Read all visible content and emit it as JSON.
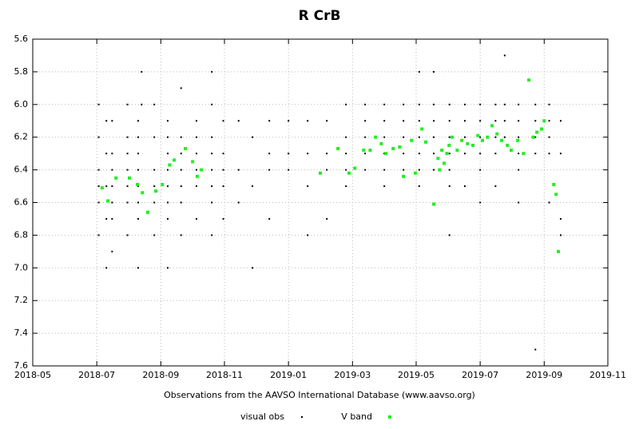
{
  "chart_data": {
    "type": "scatter",
    "title": "R CrB",
    "x_label": "Observations from the AAVSO International Database (www.aavso.org)",
    "xlim": [
      2018.333,
      2019.833
    ],
    "xticks": [
      {
        "value": 2018.333,
        "label": "2018-05"
      },
      {
        "value": 2018.5,
        "label": "2018-07"
      },
      {
        "value": 2018.667,
        "label": "2018-09"
      },
      {
        "value": 2018.833,
        "label": "2018-11"
      },
      {
        "value": 2019.0,
        "label": "2019-01"
      },
      {
        "value": 2019.167,
        "label": "2019-03"
      },
      {
        "value": 2019.333,
        "label": "2019-05"
      },
      {
        "value": 2019.5,
        "label": "2019-07"
      },
      {
        "value": 2019.667,
        "label": "2019-09"
      },
      {
        "value": 2019.833,
        "label": "2019-11"
      }
    ],
    "ylim": [
      5.6,
      7.6
    ],
    "y_inverted": true,
    "yticks": [
      5.6,
      5.8,
      {
        "value": 6,
        "label": "6.0"
      },
      6.2,
      6.4,
      6.6,
      6.8,
      {
        "value": 7,
        "label": "7.0"
      },
      7.2,
      7.4,
      7.6
    ],
    "grid": true,
    "legend": "bottom",
    "series": [
      {
        "name": "visual obs",
        "color": "#000000",
        "marker": "dot",
        "x": [
          2018.505,
          2018.505,
          2018.505,
          2018.505,
          2018.505,
          2018.505,
          2018.525,
          2018.525,
          2018.525,
          2018.525,
          2018.525,
          2018.54,
          2018.54,
          2018.54,
          2018.54,
          2018.54,
          2018.54,
          2018.54,
          2018.58,
          2018.58,
          2018.58,
          2018.58,
          2018.58,
          2018.58,
          2018.58,
          2018.608,
          2018.608,
          2018.608,
          2018.608,
          2018.608,
          2018.608,
          2018.608,
          2018.608,
          2018.617,
          2018.617,
          2018.65,
          2018.65,
          2018.65,
          2018.65,
          2018.65,
          2018.65,
          2018.685,
          2018.685,
          2018.685,
          2018.685,
          2018.685,
          2018.685,
          2018.685,
          2018.685,
          2018.72,
          2018.72,
          2018.72,
          2018.72,
          2018.72,
          2018.72,
          2018.72,
          2018.76,
          2018.76,
          2018.76,
          2018.76,
          2018.76,
          2018.76,
          2018.8,
          2018.8,
          2018.8,
          2018.8,
          2018.8,
          2018.8,
          2018.8,
          2018.8,
          2018.83,
          2018.83,
          2018.83,
          2018.83,
          2018.83,
          2018.87,
          2018.87,
          2018.87,
          2018.906,
          2018.906,
          2018.906,
          2018.95,
          2018.95,
          2018.95,
          2018.95,
          2019.0,
          2019.0,
          2019.0,
          2019.05,
          2019.05,
          2019.05,
          2019.05,
          2019.1,
          2019.1,
          2019.1,
          2019.1,
          2019.15,
          2019.15,
          2019.15,
          2019.15,
          2019.15,
          2019.2,
          2019.2,
          2019.2,
          2019.2,
          2019.2,
          2019.25,
          2019.25,
          2019.25,
          2019.25,
          2019.25,
          2019.25,
          2019.3,
          2019.3,
          2019.3,
          2019.3,
          2019.3,
          2019.341,
          2019.341,
          2019.341,
          2019.341,
          2019.341,
          2019.341,
          2019.341,
          2019.379,
          2019.379,
          2019.379,
          2019.379,
          2019.379,
          2019.379,
          2019.42,
          2019.42,
          2019.42,
          2019.42,
          2019.42,
          2019.42,
          2019.42,
          2019.46,
          2019.46,
          2019.46,
          2019.46,
          2019.46,
          2019.5,
          2019.5,
          2019.5,
          2019.5,
          2019.5,
          2019.5,
          2019.54,
          2019.54,
          2019.54,
          2019.54,
          2019.54,
          2019.564,
          2019.564,
          2019.564,
          2019.564,
          2019.6,
          2019.6,
          2019.6,
          2019.6,
          2019.6,
          2019.6,
          2019.644,
          2019.644,
          2019.644,
          2019.644,
          2019.644,
          2019.68,
          2019.68,
          2019.68,
          2019.68,
          2019.68,
          2019.71,
          2019.71,
          2019.71,
          2019.71
        ],
        "values": [
          6.0,
          6.2,
          6.4,
          6.5,
          6.6,
          6.8,
          6.1,
          6.3,
          6.5,
          6.7,
          7.0,
          6.1,
          6.3,
          6.4,
          6.5,
          6.6,
          6.7,
          6.9,
          6.0,
          6.2,
          6.3,
          6.4,
          6.5,
          6.6,
          6.8,
          6.1,
          6.2,
          6.3,
          6.4,
          6.5,
          6.6,
          6.7,
          7.0,
          5.8,
          6.0,
          6.0,
          6.2,
          6.4,
          6.5,
          6.6,
          6.8,
          6.1,
          6.2,
          6.3,
          6.4,
          6.5,
          6.6,
          6.7,
          7.0,
          5.9,
          6.2,
          6.3,
          6.4,
          6.5,
          6.6,
          6.8,
          6.1,
          6.2,
          6.3,
          6.4,
          6.5,
          6.7,
          5.8,
          6.0,
          6.2,
          6.3,
          6.4,
          6.5,
          6.6,
          6.8,
          6.1,
          6.3,
          6.4,
          6.5,
          6.7,
          6.1,
          6.4,
          6.6,
          6.2,
          6.5,
          7.0,
          6.1,
          6.3,
          6.4,
          6.7,
          6.1,
          6.3,
          6.4,
          6.1,
          6.3,
          6.5,
          6.8,
          6.1,
          6.3,
          6.4,
          6.7,
          6.0,
          6.2,
          6.3,
          6.4,
          6.5,
          6.0,
          6.1,
          6.2,
          6.3,
          6.4,
          6.0,
          6.1,
          6.2,
          6.3,
          6.4,
          6.5,
          6.0,
          6.1,
          6.2,
          6.3,
          6.4,
          5.8,
          6.0,
          6.1,
          6.2,
          6.3,
          6.4,
          6.5,
          5.8,
          6.0,
          6.1,
          6.2,
          6.3,
          6.4,
          6.0,
          6.1,
          6.2,
          6.3,
          6.4,
          6.5,
          6.8,
          6.0,
          6.1,
          6.2,
          6.3,
          6.5,
          6.0,
          6.1,
          6.2,
          6.3,
          6.4,
          6.6,
          6.0,
          6.1,
          6.2,
          6.3,
          6.5,
          5.7,
          6.0,
          6.1,
          6.2,
          6.0,
          6.1,
          6.2,
          6.3,
          6.4,
          6.6,
          6.0,
          6.1,
          6.2,
          6.3,
          7.5,
          6.0,
          6.1,
          6.2,
          6.3,
          6.6,
          6.1,
          6.3,
          6.7,
          6.8
        ]
      },
      {
        "name": "V band",
        "color": "#22ee22",
        "marker": "square",
        "x": [
          2018.514,
          2018.529,
          2018.55,
          2018.585,
          2018.606,
          2018.619,
          2018.633,
          2018.654,
          2018.671,
          2018.69,
          2018.702,
          2018.731,
          2018.75,
          2018.762,
          2018.773,
          2019.083,
          2019.129,
          2019.158,
          2019.173,
          2019.196,
          2019.213,
          2019.227,
          2019.242,
          2019.254,
          2019.273,
          2019.29,
          2019.3,
          2019.321,
          2019.331,
          2019.348,
          2019.358,
          2019.379,
          2019.39,
          2019.394,
          2019.4,
          2019.406,
          2019.413,
          2019.419,
          2019.427,
          2019.44,
          2019.452,
          2019.467,
          2019.481,
          2019.494,
          2019.506,
          2019.519,
          2019.531,
          2019.544,
          2019.556,
          2019.571,
          2019.581,
          2019.598,
          2019.613,
          2019.627,
          2019.638,
          2019.648,
          2019.66,
          2019.667,
          2019.692,
          2019.698,
          2019.704
        ],
        "values": [
          6.51,
          6.59,
          6.45,
          6.45,
          6.49,
          6.54,
          6.66,
          6.53,
          6.49,
          6.37,
          6.34,
          6.27,
          6.35,
          6.44,
          6.4,
          6.42,
          6.27,
          6.42,
          6.39,
          6.28,
          6.28,
          6.2,
          6.24,
          6.3,
          6.27,
          6.26,
          6.44,
          6.22,
          6.42,
          6.15,
          6.23,
          6.61,
          6.33,
          6.4,
          6.28,
          6.36,
          6.3,
          6.25,
          6.2,
          6.28,
          6.22,
          6.24,
          6.25,
          6.19,
          6.22,
          6.2,
          6.13,
          6.18,
          6.22,
          6.25,
          6.28,
          6.22,
          6.3,
          5.85,
          6.2,
          6.17,
          6.15,
          6.1,
          6.49,
          6.55,
          6.9
        ]
      }
    ]
  }
}
